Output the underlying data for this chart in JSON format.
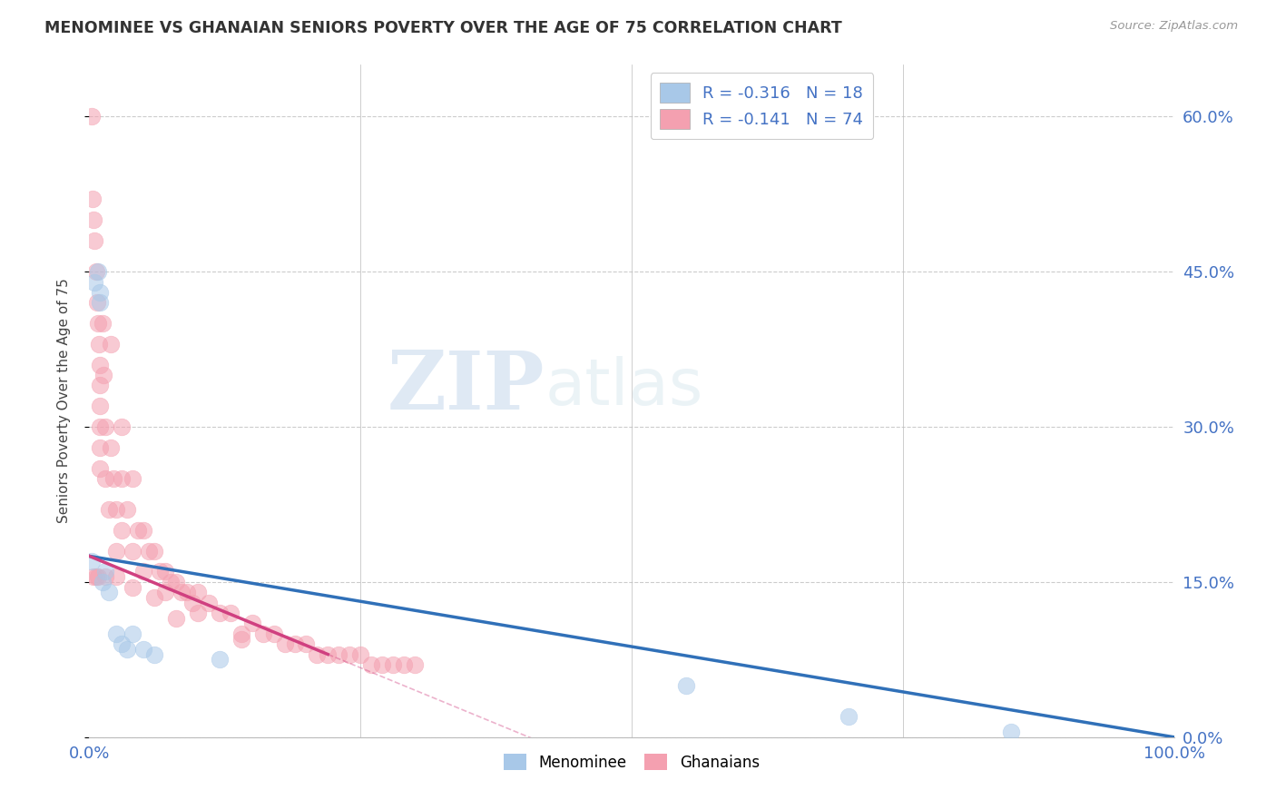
{
  "title": "MENOMINEE VS GHANAIAN SENIORS POVERTY OVER THE AGE OF 75 CORRELATION CHART",
  "source": "Source: ZipAtlas.com",
  "ylabel": "Seniors Poverty Over the Age of 75",
  "xlim": [
    0.0,
    1.0
  ],
  "ylim": [
    0.0,
    0.65
  ],
  "ytick_vals": [
    0.0,
    0.15,
    0.3,
    0.45,
    0.6
  ],
  "right_ytick_labels": [
    "0.0%",
    "15.0%",
    "30.0%",
    "45.0%",
    "60.0%"
  ],
  "legend_r_menominee": "R = -0.316",
  "legend_n_menominee": "N = 18",
  "legend_r_ghanaians": "R = -0.141",
  "legend_n_ghanaians": "N = 74",
  "menominee_color": "#a8c8e8",
  "ghanaian_color": "#f4a0b0",
  "menominee_line_color": "#3070b8",
  "ghanaian_line_color": "#d04080",
  "watermark_zip": "ZIP",
  "watermark_atlas": "atlas",
  "background_color": "#ffffff",
  "grid_color": "#cccccc",
  "text_color": "#4472c4",
  "menominee_x": [
    0.002,
    0.005,
    0.008,
    0.01,
    0.01,
    0.012,
    0.015,
    0.018,
    0.025,
    0.03,
    0.035,
    0.04,
    0.05,
    0.06,
    0.12,
    0.55,
    0.7,
    0.85
  ],
  "menominee_y": [
    0.17,
    0.44,
    0.45,
    0.43,
    0.42,
    0.15,
    0.16,
    0.14,
    0.1,
    0.09,
    0.085,
    0.1,
    0.085,
    0.08,
    0.075,
    0.05,
    0.02,
    0.005
  ],
  "ghanaian_x": [
    0.002,
    0.003,
    0.004,
    0.005,
    0.006,
    0.007,
    0.008,
    0.009,
    0.01,
    0.01,
    0.01,
    0.01,
    0.01,
    0.01,
    0.012,
    0.013,
    0.015,
    0.015,
    0.018,
    0.02,
    0.02,
    0.022,
    0.025,
    0.025,
    0.03,
    0.03,
    0.03,
    0.035,
    0.04,
    0.04,
    0.045,
    0.05,
    0.05,
    0.055,
    0.06,
    0.065,
    0.07,
    0.07,
    0.075,
    0.08,
    0.085,
    0.09,
    0.095,
    0.1,
    0.1,
    0.11,
    0.12,
    0.13,
    0.14,
    0.15,
    0.16,
    0.17,
    0.18,
    0.19,
    0.2,
    0.21,
    0.22,
    0.23,
    0.24,
    0.25,
    0.26,
    0.27,
    0.28,
    0.29,
    0.3,
    0.14,
    0.08,
    0.06,
    0.04,
    0.025,
    0.015,
    0.008,
    0.006,
    0.004
  ],
  "ghanaian_y": [
    0.6,
    0.52,
    0.5,
    0.48,
    0.45,
    0.42,
    0.4,
    0.38,
    0.36,
    0.34,
    0.32,
    0.3,
    0.28,
    0.26,
    0.4,
    0.35,
    0.3,
    0.25,
    0.22,
    0.38,
    0.28,
    0.25,
    0.22,
    0.18,
    0.3,
    0.25,
    0.2,
    0.22,
    0.25,
    0.18,
    0.2,
    0.2,
    0.16,
    0.18,
    0.18,
    0.16,
    0.16,
    0.14,
    0.15,
    0.15,
    0.14,
    0.14,
    0.13,
    0.14,
    0.12,
    0.13,
    0.12,
    0.12,
    0.1,
    0.11,
    0.1,
    0.1,
    0.09,
    0.09,
    0.09,
    0.08,
    0.08,
    0.08,
    0.08,
    0.08,
    0.07,
    0.07,
    0.07,
    0.07,
    0.07,
    0.095,
    0.115,
    0.135,
    0.145,
    0.155,
    0.155,
    0.155,
    0.155,
    0.155
  ],
  "men_line_x0": 0.0,
  "men_line_y0": 0.175,
  "men_line_x1": 1.0,
  "men_line_y1": 0.0,
  "gha_line_x0": 0.0,
  "gha_line_y0": 0.175,
  "gha_line_x1": 0.22,
  "gha_line_y1": 0.08
}
